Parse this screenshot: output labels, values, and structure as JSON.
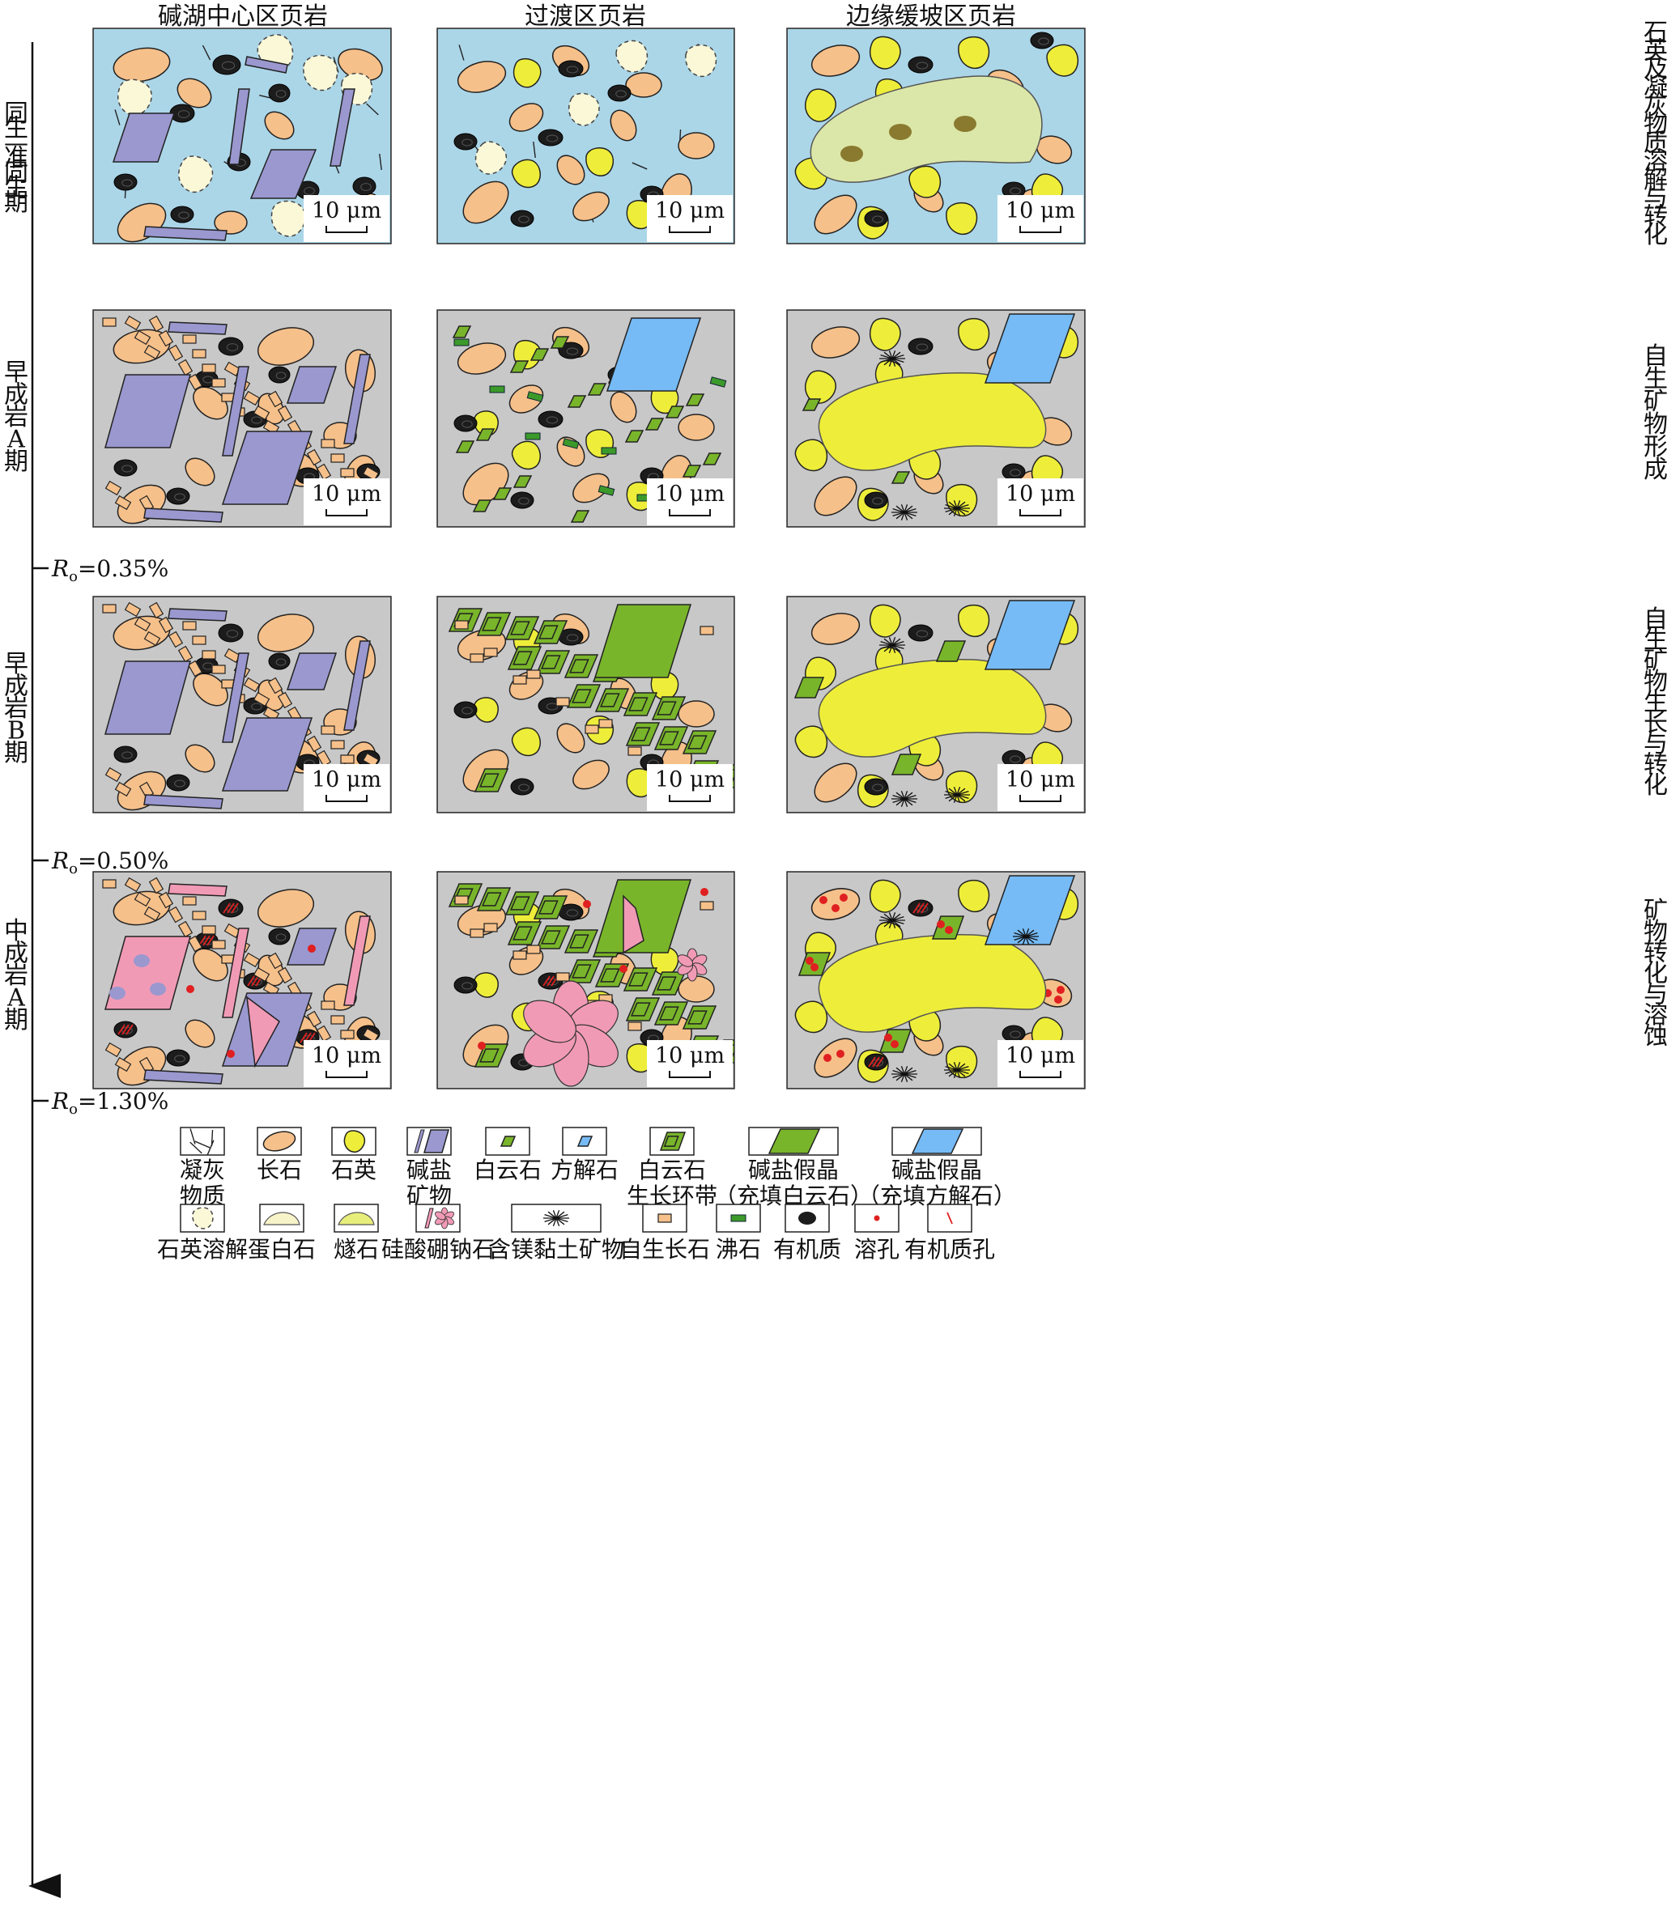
{
  "columns": [
    "碱湖中心区页岩",
    "过渡区页岩",
    "边缘缓坡区页岩"
  ],
  "stages": [
    {
      "label": "同生—准同生期",
      "process": "石英及凝灰物质溶解与转化"
    },
    {
      "label": "早成岩A期",
      "process": "自生矿物形成"
    },
    {
      "label": "早成岩B期",
      "process": "自生矿物生长与转化"
    },
    {
      "label": "中成岩A期",
      "process": "矿物转化与溶蚀"
    }
  ],
  "ro_markers": [
    {
      "sym": "R",
      "sub": "o",
      "val": "=0.35%"
    },
    {
      "sym": "R",
      "sub": "o",
      "val": "=0.50%"
    },
    {
      "sym": "R",
      "sub": "o",
      "val": "=1.30%"
    }
  ],
  "scale_label": "10 μm",
  "legend_row1": [
    {
      "icon": "tuff-icon",
      "lines": [
        "凝灰",
        "物质"
      ]
    },
    {
      "icon": "feldspar-icon",
      "lines": [
        "长石"
      ]
    },
    {
      "icon": "quartz-icon",
      "lines": [
        "石英"
      ]
    },
    {
      "icon": "alkali-salt-icon",
      "lines": [
        "碱盐",
        "矿物"
      ]
    },
    {
      "icon": "dolomite-icon",
      "lines": [
        "白云石"
      ]
    },
    {
      "icon": "calcite-icon",
      "lines": [
        "方解石"
      ]
    },
    {
      "icon": "dolomite-zoned-icon",
      "lines": [
        "白云石",
        "生长环带"
      ]
    },
    {
      "icon": "pseudomorph-dolomite-icon",
      "lines": [
        "碱盐假晶",
        "（充填白云石）"
      ]
    },
    {
      "icon": "pseudomorph-calcite-icon",
      "lines": [
        "碱盐假晶",
        "（充填方解石）"
      ]
    }
  ],
  "legend_row2": [
    {
      "icon": "quartz-dissolution-icon",
      "lines": [
        "石英溶解"
      ]
    },
    {
      "icon": "opal-icon",
      "lines": [
        "蛋白石"
      ]
    },
    {
      "icon": "chert-icon",
      "lines": [
        "燧石"
      ]
    },
    {
      "icon": "reedmergnerite-icon",
      "lines": [
        "硅酸硼钠石"
      ]
    },
    {
      "icon": "mg-clay-icon",
      "lines": [
        "含镁黏土矿物"
      ]
    },
    {
      "icon": "authigenic-feldspar-icon",
      "lines": [
        "自生长石"
      ]
    },
    {
      "icon": "zeolite-icon",
      "lines": [
        "沸石"
      ]
    },
    {
      "icon": "organic-matter-icon",
      "lines": [
        "有机质"
      ]
    },
    {
      "icon": "dissolution-pore-icon",
      "lines": [
        "溶孔"
      ]
    },
    {
      "icon": "organic-pore-icon",
      "lines": [
        "有机质孔"
      ]
    }
  ],
  "colors": {
    "water": "#abd6e8",
    "matrix": "#c8c8c8",
    "feldspar": "#f6c08a",
    "quartz": "#eeee3a",
    "salt": "#9a98cf",
    "dolomite": "#79b52a",
    "calcite": "#76bbf6",
    "opal": "#f7f4c9",
    "chert": "#dbe7a8",
    "reedmergnerite": "#f19ab6",
    "organic": "#1c1c1c",
    "pore": "#e02020"
  }
}
